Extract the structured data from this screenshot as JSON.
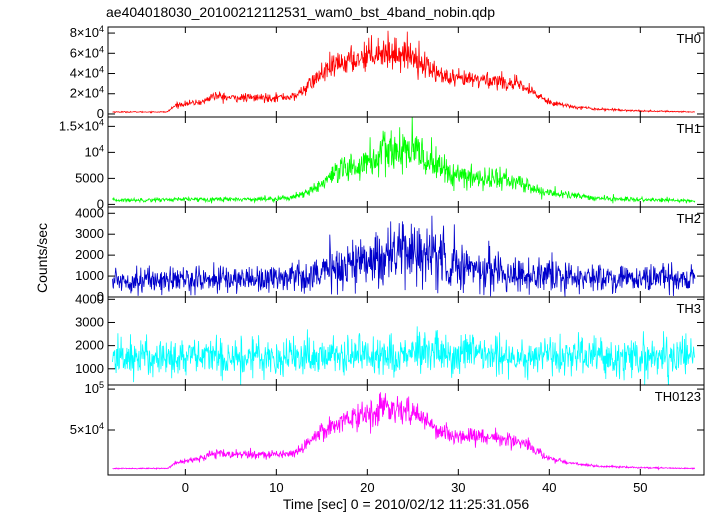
{
  "title": "ae404018030_20100212112531_wam0_bst_4band_nobin.qdp",
  "chart_data": {
    "type": "line",
    "xlabel": "Time [sec] 0 = 2010/02/12 11:25:31.056",
    "ylabel": "Counts/sec",
    "xlim": [
      -8.5,
      57
    ],
    "xticks": [
      0,
      10,
      20,
      30,
      40,
      50
    ],
    "x_tick_labels": [
      "0",
      "10",
      "20",
      "30",
      "40",
      "50"
    ],
    "panels": [
      {
        "name": "TH0",
        "color": "#ff0000",
        "ylim": [
          -3000,
          86000
        ],
        "y_tick_labels": [
          {
            "v": 0,
            "t": "0",
            "sup": ""
          },
          {
            "v": 20000,
            "t": "2×10",
            "sup": "4"
          },
          {
            "v": 40000,
            "t": "4×10",
            "sup": "4"
          },
          {
            "v": 60000,
            "t": "6×10",
            "sup": "4"
          },
          {
            "v": 80000,
            "t": "8×10",
            "sup": "4"
          }
        ],
        "envelope_x": [
          -8,
          -2,
          -1,
          0,
          2,
          3,
          5,
          8,
          12,
          13,
          15,
          17,
          19,
          21,
          23,
          25,
          27,
          29,
          31,
          33,
          35,
          37,
          39,
          40,
          42,
          45,
          50,
          56
        ],
        "envelope_y": [
          2000,
          2000,
          9000,
          10000,
          12000,
          18000,
          16000,
          16000,
          17000,
          24000,
          40000,
          50000,
          55000,
          62000,
          60000,
          58000,
          44000,
          34000,
          34000,
          34000,
          32000,
          27000,
          17000,
          12000,
          8000,
          5000,
          3000,
          2000
        ],
        "noise": 0.13
      },
      {
        "name": "TH1",
        "color": "#00ff00",
        "ylim": [
          -500,
          16800
        ],
        "y_tick_labels": [
          {
            "v": 0,
            "t": "0",
            "sup": ""
          },
          {
            "v": 5000,
            "t": "5000",
            "sup": ""
          },
          {
            "v": 10000,
            "t": "10",
            "sup": "4"
          },
          {
            "v": 15000,
            "t": "1.5×10",
            "sup": "4"
          }
        ],
        "envelope_x": [
          -8,
          2,
          5,
          8,
          11,
          13,
          15,
          17,
          19,
          21,
          23,
          25,
          27,
          29,
          31,
          33,
          35,
          37,
          39,
          42,
          45,
          50,
          56
        ],
        "envelope_y": [
          800,
          1000,
          1000,
          1000,
          1200,
          1800,
          4000,
          6000,
          7500,
          9000,
          10500,
          10000,
          8500,
          6000,
          5000,
          5200,
          4800,
          4000,
          2500,
          1800,
          1200,
          900,
          700
        ],
        "noise": 0.22
      },
      {
        "name": "TH2",
        "color": "#0000cc",
        "ylim": [
          0,
          4300
        ],
        "y_tick_labels": [
          {
            "v": 0,
            "t": "0",
            "sup": ""
          },
          {
            "v": 1000,
            "t": "1000",
            "sup": ""
          },
          {
            "v": 2000,
            "t": "2000",
            "sup": ""
          },
          {
            "v": 3000,
            "t": "3000",
            "sup": ""
          },
          {
            "v": 4000,
            "t": "4000",
            "sup": ""
          }
        ],
        "envelope_x": [
          -8,
          5,
          10,
          14,
          17,
          20,
          23,
          25,
          27,
          30,
          33,
          36,
          40,
          45,
          56
        ],
        "envelope_y": [
          800,
          850,
          900,
          1100,
          1400,
          1800,
          2100,
          2200,
          2000,
          1500,
          1300,
          1100,
          950,
          900,
          850
        ],
        "noise": 0.38
      },
      {
        "name": "TH3",
        "color": "#00ffff",
        "ylim": [
          300,
          4100
        ],
        "y_tick_labels": [
          {
            "v": 1000,
            "t": "1000",
            "sup": ""
          },
          {
            "v": 2000,
            "t": "2000",
            "sup": ""
          },
          {
            "v": 3000,
            "t": "3000",
            "sup": ""
          },
          {
            "v": 4000,
            "t": "4000",
            "sup": ""
          }
        ],
        "envelope_x": [
          -8,
          10,
          20,
          25,
          30,
          40,
          56
        ],
        "envelope_y": [
          1500,
          1520,
          1600,
          1650,
          1600,
          1520,
          1500
        ],
        "noise": 0.28
      },
      {
        "name": "TH0123",
        "color": "#ff00ff",
        "ylim": [
          -5000,
          105000
        ],
        "y_tick_labels": [
          {
            "v": 50000,
            "t": "5×10",
            "sup": "4"
          },
          {
            "v": 100000,
            "t": "10",
            "sup": "5"
          }
        ],
        "envelope_x": [
          -8,
          -2,
          -1,
          0,
          2,
          3,
          5,
          8,
          12,
          13,
          15,
          17,
          19,
          21,
          23,
          25,
          27,
          29,
          31,
          33,
          35,
          37,
          39,
          40,
          42,
          45,
          50,
          56
        ],
        "envelope_y": [
          3000,
          3000,
          10000,
          12000,
          16000,
          22000,
          20000,
          20000,
          21000,
          30000,
          50000,
          60000,
          68000,
          75000,
          74000,
          72000,
          56000,
          44000,
          42000,
          42000,
          40000,
          34000,
          22000,
          15000,
          10000,
          6000,
          4000,
          3000
        ],
        "noise": 0.12
      }
    ]
  }
}
